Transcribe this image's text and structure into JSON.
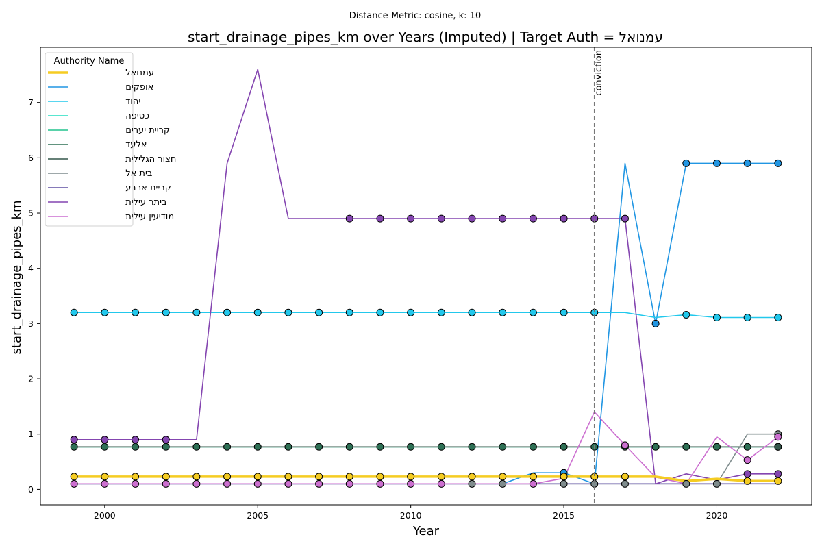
{
  "chart_data": {
    "type": "line",
    "suptitle": "Distance Metric: cosine, k: 10",
    "title": "start_drainage_pipes_km over Years (Imputed) | Target Auth = עמנואל",
    "xlabel": "Year",
    "ylabel": "start_drainage_pipes_km",
    "xlim": [
      1997.9,
      2023.1
    ],
    "ylim": [
      -0.28,
      8.0
    ],
    "xticks": [
      2000,
      2005,
      2010,
      2015,
      2020
    ],
    "yticks": [
      0,
      1,
      2,
      3,
      4,
      5,
      6,
      7
    ],
    "grid": false,
    "legend": {
      "title": "Authority Name",
      "placement": "top-left"
    },
    "annotation": {
      "label": "conviction",
      "x": 2016
    },
    "x": [
      1999,
      2000,
      2001,
      2002,
      2003,
      2004,
      2005,
      2006,
      2007,
      2008,
      2009,
      2010,
      2011,
      2012,
      2013,
      2014,
      2015,
      2016,
      2017,
      2018,
      2019,
      2020,
      2021,
      2022
    ],
    "series": [
      {
        "name": "עמנואל",
        "color": "#f5cc22",
        "target": true,
        "values": [
          0.23,
          0.23,
          0.23,
          0.23,
          0.23,
          0.23,
          0.23,
          0.23,
          0.23,
          0.23,
          0.23,
          0.23,
          0.23,
          0.23,
          0.23,
          0.23,
          0.23,
          0.23,
          0.23,
          0.23,
          0.15,
          0.19,
          0.15,
          0.15
        ],
        "markers": [
          1999,
          2000,
          2001,
          2002,
          2003,
          2004,
          2005,
          2006,
          2007,
          2008,
          2009,
          2010,
          2011,
          2012,
          2013,
          2014,
          2015,
          2016,
          2017,
          2021,
          2022
        ]
      },
      {
        "name": "אופקים",
        "color": "#2196e3",
        "values": [
          0.1,
          0.1,
          0.1,
          0.1,
          0.1,
          0.1,
          0.1,
          0.1,
          0.1,
          0.1,
          0.1,
          0.1,
          0.1,
          0.1,
          0.1,
          0.3,
          0.3,
          0.1,
          5.9,
          3.0,
          5.9,
          5.9,
          5.9,
          5.9
        ],
        "markers": [
          2015,
          2018,
          2019,
          2020,
          2021,
          2022
        ]
      },
      {
        "name": "יהוד",
        "color": "#22c8ec",
        "values": [
          3.2,
          3.2,
          3.2,
          3.2,
          3.2,
          3.2,
          3.2,
          3.2,
          3.2,
          3.2,
          3.2,
          3.2,
          3.2,
          3.2,
          3.2,
          3.2,
          3.2,
          3.2,
          3.2,
          3.11,
          3.16,
          3.11,
          3.11,
          3.11
        ],
        "markers": [
          1999,
          2000,
          2001,
          2002,
          2003,
          2004,
          2005,
          2006,
          2007,
          2008,
          2009,
          2010,
          2011,
          2012,
          2013,
          2014,
          2015,
          2016,
          2019,
          2020,
          2021,
          2022
        ]
      },
      {
        "name": "כסיפה",
        "color": "#22dec0",
        "values": [
          0.77,
          0.77,
          0.77,
          0.77,
          0.77,
          0.77,
          0.77,
          0.77,
          0.77,
          0.77,
          0.77,
          0.77,
          0.77,
          0.77,
          0.77,
          0.77,
          0.77,
          0.77,
          0.77,
          0.77,
          0.77,
          0.77,
          0.77,
          0.77
        ],
        "markers": []
      },
      {
        "name": "קריית יערים",
        "color": "#22c48e",
        "values": [
          0.77,
          0.77,
          0.77,
          0.77,
          0.77,
          0.77,
          0.77,
          0.77,
          0.77,
          0.77,
          0.77,
          0.77,
          0.77,
          0.77,
          0.77,
          0.77,
          0.77,
          0.77,
          0.77,
          0.77,
          0.77,
          0.77,
          0.77,
          0.77
        ],
        "markers": []
      },
      {
        "name": "אלעד",
        "color": "#2e7055",
        "values": [
          0.77,
          0.77,
          0.77,
          0.77,
          0.77,
          0.77,
          0.77,
          0.77,
          0.77,
          0.77,
          0.77,
          0.77,
          0.77,
          0.77,
          0.77,
          0.77,
          0.77,
          0.77,
          0.77,
          0.77,
          0.77,
          0.77,
          0.77,
          0.77
        ],
        "markers": [
          1999,
          2000,
          2001,
          2002,
          2003,
          2004,
          2005,
          2006,
          2007,
          2008,
          2009,
          2010,
          2011,
          2012,
          2013,
          2014,
          2015,
          2016,
          2017,
          2018,
          2019,
          2020,
          2021,
          2022
        ]
      },
      {
        "name": "חצור הגלילית",
        "color": "#34564a",
        "values": [
          0.77,
          0.77,
          0.77,
          0.77,
          0.77,
          0.77,
          0.77,
          0.77,
          0.77,
          0.77,
          0.77,
          0.77,
          0.77,
          0.77,
          0.77,
          0.77,
          0.77,
          0.77,
          0.77,
          0.77,
          0.77,
          0.77,
          0.77,
          0.77
        ],
        "markers": [
          2022
        ]
      },
      {
        "name": "בית אל",
        "color": "#7f8c8d",
        "values": [
          0.1,
          0.1,
          0.1,
          0.1,
          0.1,
          0.1,
          0.1,
          0.1,
          0.1,
          0.1,
          0.1,
          0.1,
          0.1,
          0.1,
          0.1,
          0.1,
          0.1,
          0.1,
          0.1,
          0.1,
          0.1,
          0.1,
          1.0,
          1.0
        ],
        "markers": [
          2012,
          2013,
          2015,
          2016,
          2017,
          2019,
          2020,
          2022
        ]
      },
      {
        "name": "קריית ארבע",
        "color": "#5e4fa2",
        "values": [
          0.1,
          0.1,
          0.1,
          0.1,
          0.1,
          0.1,
          0.1,
          0.1,
          0.1,
          0.1,
          0.1,
          0.1,
          0.1,
          0.1,
          0.1,
          0.1,
          0.1,
          0.1,
          0.1,
          0.1,
          0.1,
          0.1,
          0.1,
          0.1
        ],
        "markers": []
      },
      {
        "name": "ביתר עילית",
        "color": "#8445b0",
        "values": [
          0.9,
          0.9,
          0.9,
          0.9,
          0.9,
          5.9,
          7.6,
          4.9,
          4.9,
          4.9,
          4.9,
          4.9,
          4.9,
          4.9,
          4.9,
          4.9,
          4.9,
          4.9,
          4.9,
          0.1,
          0.28,
          0.17,
          0.28,
          0.28
        ],
        "markers": [
          1999,
          2000,
          2001,
          2002,
          2008,
          2009,
          2010,
          2011,
          2012,
          2013,
          2014,
          2015,
          2016,
          2017,
          2021,
          2022
        ]
      },
      {
        "name": "מודיעין עילית",
        "color": "#cc6fd0",
        "values": [
          0.1,
          0.1,
          0.1,
          0.1,
          0.1,
          0.1,
          0.1,
          0.1,
          0.1,
          0.1,
          0.1,
          0.1,
          0.1,
          0.1,
          0.1,
          0.1,
          0.2,
          1.4,
          0.8,
          0.22,
          0.1,
          0.95,
          0.53,
          0.95
        ],
        "markers": [
          1999,
          2000,
          2001,
          2002,
          2003,
          2004,
          2005,
          2006,
          2007,
          2008,
          2009,
          2010,
          2011,
          2014,
          2017,
          2021,
          2022
        ]
      }
    ]
  }
}
